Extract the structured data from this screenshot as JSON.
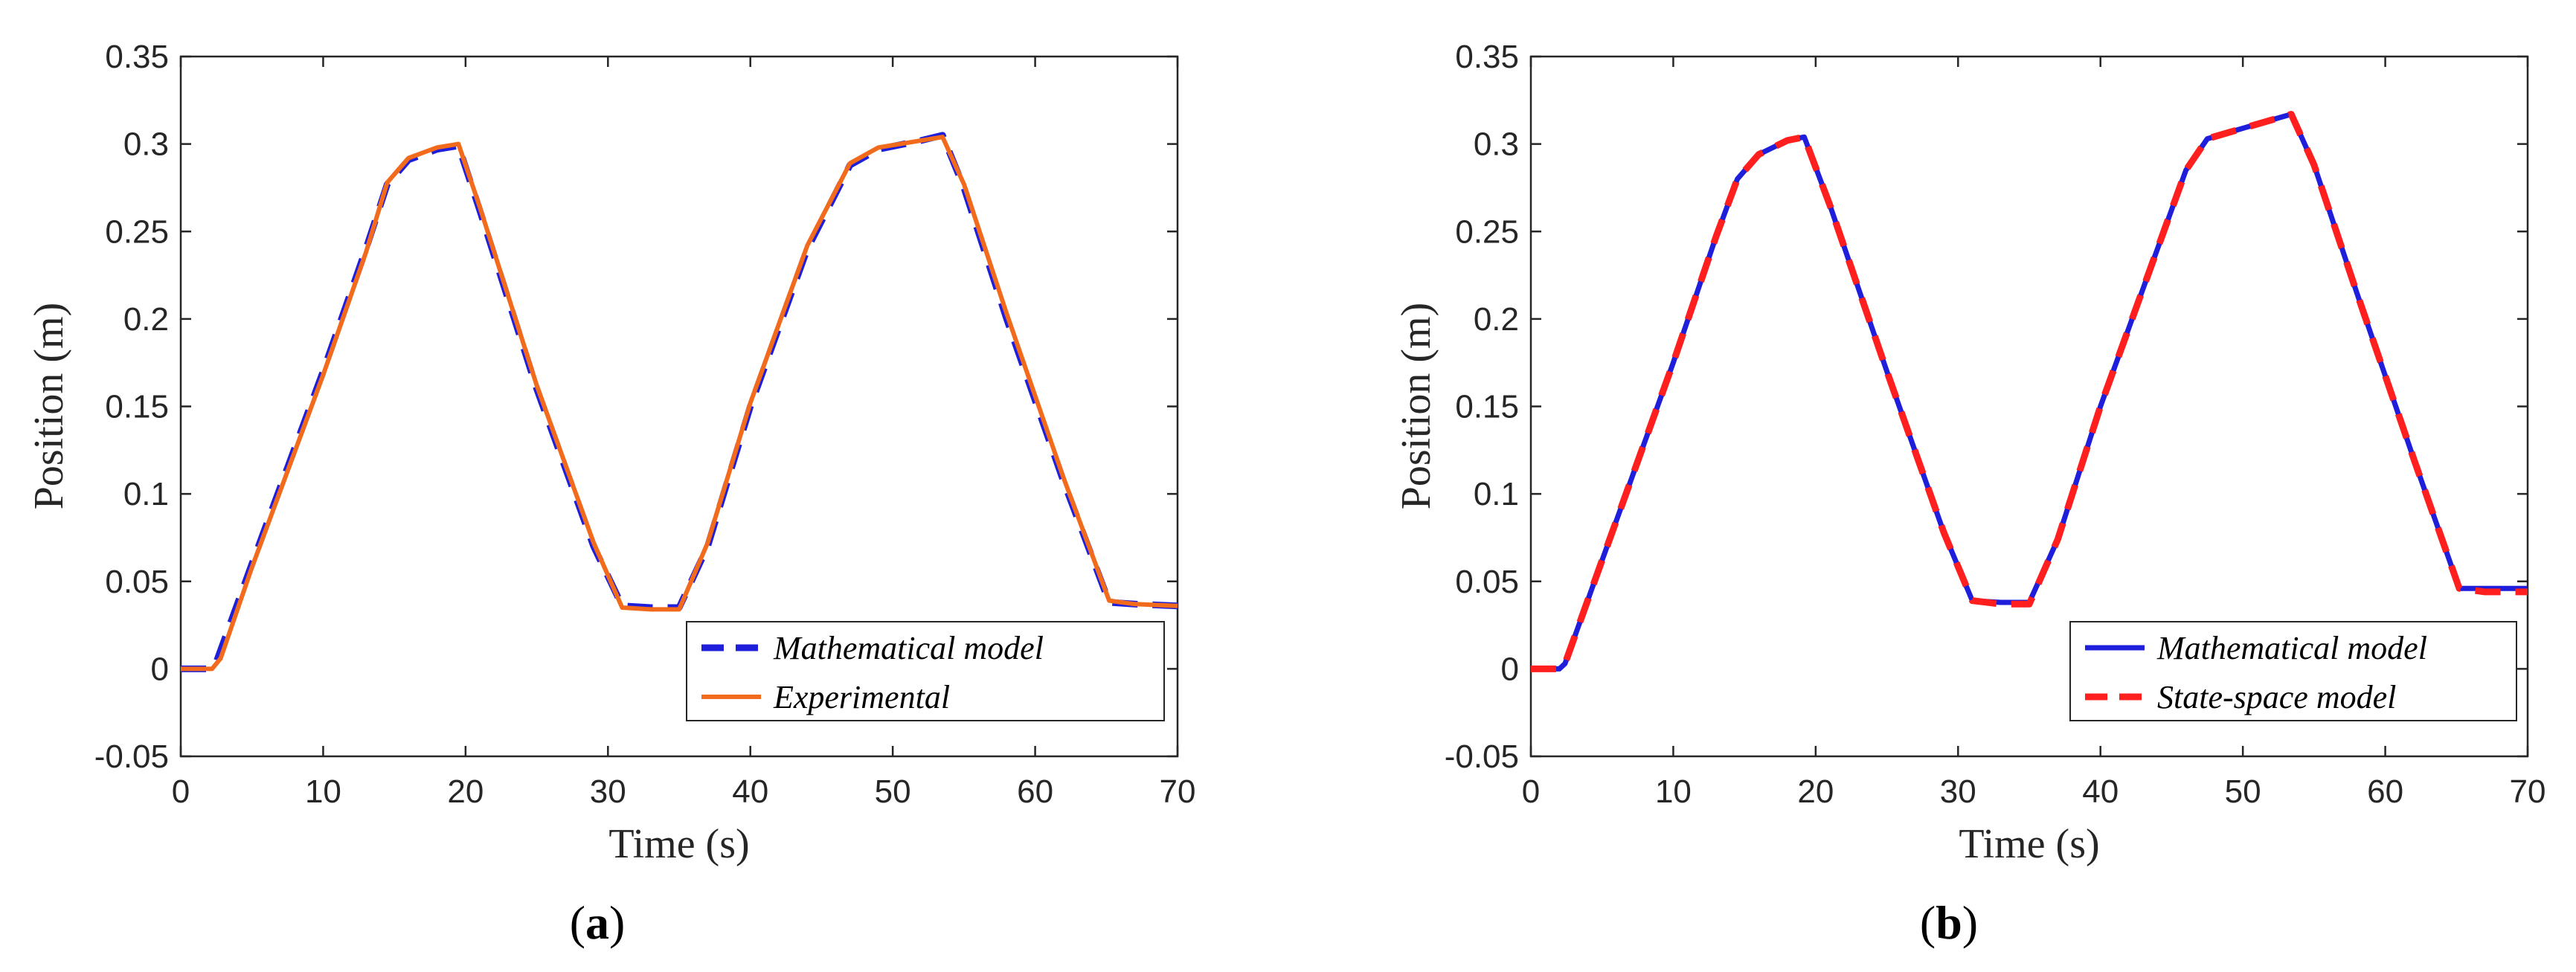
{
  "chart_data": [
    {
      "type": "line",
      "panel_label_open": "(",
      "panel_label_letter": "a",
      "panel_label_close": ")",
      "xlabel": "Time (s)",
      "ylabel": "Position (m)",
      "xlim": [
        0,
        70
      ],
      "ylim": [
        -0.05,
        0.35
      ],
      "xticks": [
        0,
        10,
        20,
        30,
        40,
        50,
        60,
        70
      ],
      "xtick_labels": [
        "0",
        "10",
        "20",
        "30",
        "40",
        "50",
        "60",
        "70"
      ],
      "yticks": [
        -0.05,
        0,
        0.05,
        0.1,
        0.15,
        0.2,
        0.25,
        0.3,
        0.35
      ],
      "ytick_labels": [
        "-0.05",
        "0",
        "0.05",
        "0.1",
        "0.15",
        "0.2",
        "0.25",
        "0.3",
        "0.35"
      ],
      "grid": false,
      "legend_position": "bottom-right",
      "series": [
        {
          "name": "Mathematical model",
          "color": "#1f1fdb",
          "style": "dashed",
          "x": [
            0,
            2,
            2.5,
            5,
            10,
            13,
            14.5,
            16,
            18,
            19.5,
            21,
            25,
            29,
            31,
            33,
            35,
            37,
            40,
            44,
            47,
            49,
            52,
            53.5,
            55,
            58,
            62,
            65.2,
            67,
            70
          ],
          "y": [
            0,
            0,
            0.004,
            0.06,
            0.17,
            0.24,
            0.277,
            0.291,
            0.297,
            0.299,
            0.262,
            0.16,
            0.07,
            0.036,
            0.035,
            0.035,
            0.07,
            0.15,
            0.24,
            0.288,
            0.297,
            0.302,
            0.305,
            0.275,
            0.2,
            0.107,
            0.038,
            0.037,
            0.036
          ]
        },
        {
          "name": "Experimental",
          "color": "#f26b1d",
          "style": "solid",
          "x": [
            0,
            2.2,
            2.8,
            5,
            10,
            13,
            14.5,
            16,
            18,
            19.5,
            21,
            25,
            29,
            31,
            33,
            35,
            37,
            40,
            44,
            47,
            49,
            52,
            53.5,
            55,
            58,
            62,
            65.2,
            67,
            70
          ],
          "y": [
            0,
            0,
            0.006,
            0.058,
            0.168,
            0.238,
            0.278,
            0.292,
            0.298,
            0.3,
            0.264,
            0.162,
            0.072,
            0.035,
            0.034,
            0.034,
            0.072,
            0.152,
            0.242,
            0.289,
            0.298,
            0.302,
            0.304,
            0.277,
            0.203,
            0.109,
            0.039,
            0.037,
            0.036
          ]
        }
      ]
    },
    {
      "type": "line",
      "panel_label_open": "(",
      "panel_label_letter": "b",
      "panel_label_close": ")",
      "xlabel": "Time (s)",
      "ylabel": "Position (m)",
      "xlim": [
        0,
        70
      ],
      "ylim": [
        -0.05,
        0.35
      ],
      "xticks": [
        0,
        10,
        20,
        30,
        40,
        50,
        60,
        70
      ],
      "xtick_labels": [
        "0",
        "10",
        "20",
        "30",
        "40",
        "50",
        "60",
        "70"
      ],
      "yticks": [
        -0.05,
        0,
        0.05,
        0.1,
        0.15,
        0.2,
        0.25,
        0.3,
        0.35
      ],
      "ytick_labels": [
        "-0.05",
        "0",
        "0.05",
        "0.1",
        "0.15",
        "0.2",
        "0.25",
        "0.3",
        "0.35"
      ],
      "grid": false,
      "legend_position": "bottom-right",
      "series": [
        {
          "name": "Mathematical model",
          "color": "#1f1fdb",
          "style": "solid",
          "x": [
            0,
            2,
            2.4,
            5,
            10,
            13,
            14.5,
            16,
            18,
            19.2,
            21,
            25,
            29,
            31,
            33,
            35,
            37,
            40,
            44,
            46,
            47.5,
            50,
            53.4,
            55,
            58,
            62,
            65.2,
            67,
            70
          ],
          "y": [
            0,
            0,
            0.003,
            0.062,
            0.175,
            0.247,
            0.28,
            0.294,
            0.302,
            0.304,
            0.265,
            0.17,
            0.078,
            0.039,
            0.038,
            0.038,
            0.074,
            0.15,
            0.24,
            0.285,
            0.303,
            0.309,
            0.317,
            0.288,
            0.215,
            0.12,
            0.046,
            0.046,
            0.046
          ]
        },
        {
          "name": "State-space model",
          "color": "#ff1f1f",
          "style": "dashed",
          "x": [
            0,
            2,
            2.4,
            5,
            10,
            13,
            14.5,
            16,
            18,
            19.2,
            21,
            25,
            29,
            31,
            33,
            35,
            37,
            40,
            44,
            46,
            47.5,
            50,
            53.4,
            55,
            58,
            62,
            65.2,
            67,
            70
          ],
          "y": [
            0,
            0,
            0.003,
            0.062,
            0.175,
            0.247,
            0.28,
            0.294,
            0.302,
            0.304,
            0.265,
            0.17,
            0.078,
            0.039,
            0.037,
            0.037,
            0.074,
            0.15,
            0.24,
            0.285,
            0.303,
            0.309,
            0.317,
            0.288,
            0.215,
            0.12,
            0.046,
            0.044,
            0.044
          ]
        }
      ]
    }
  ]
}
